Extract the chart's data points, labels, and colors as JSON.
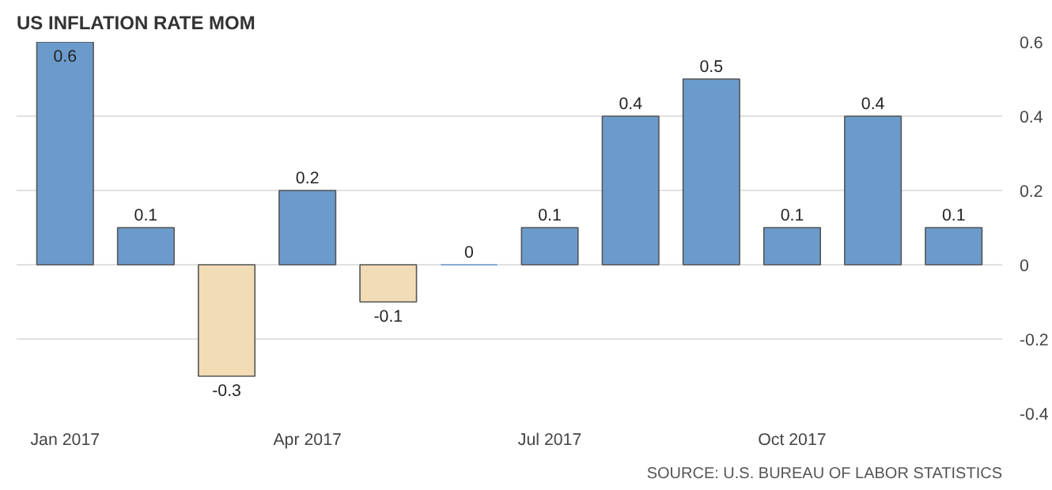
{
  "chart_data": {
    "type": "bar",
    "title": "US INFLATION RATE MOM",
    "categories": [
      "Jan 2017",
      null,
      null,
      "Apr 2017",
      null,
      null,
      "Jul 2017",
      null,
      null,
      "Oct 2017",
      null,
      null
    ],
    "values": [
      0.6,
      0.1,
      -0.3,
      0.2,
      -0.1,
      0,
      0.1,
      0.4,
      0.5,
      0.1,
      0.4,
      0.1
    ],
    "colors": [
      "#6b9bcb",
      "#6b9bcb",
      "#f2dcb5",
      "#6b9bcb",
      "#f2dcb5",
      "#6b9bcb",
      "#6b9bcb",
      "#6b9bcb",
      "#6b9bcb",
      "#6b9bcb",
      "#6b9bcb",
      "#6b9bcb"
    ],
    "ylim": [
      -0.4,
      0.6
    ],
    "yticks": [
      -0.4,
      -0.2,
      0,
      0.2,
      0.4,
      0.6
    ],
    "grid": "y",
    "data_labels": true,
    "annotations": [
      "SOURCE: U.S. BUREAU OF LABOR STATISTICS"
    ]
  }
}
